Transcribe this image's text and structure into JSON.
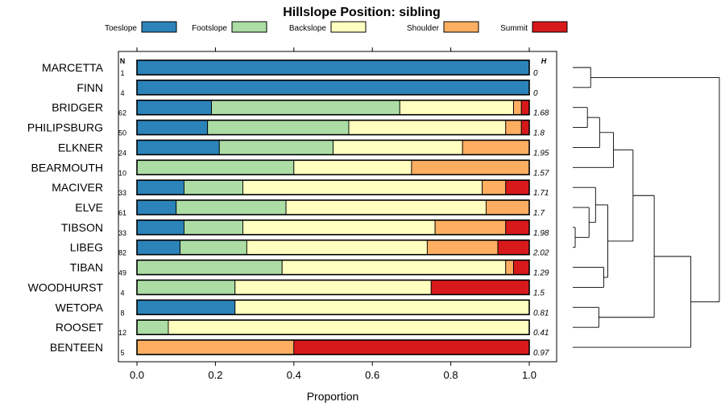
{
  "chart_data": {
    "type": "bar",
    "orientation": "horizontal",
    "stacked": true,
    "title": "Hillslope Position: sibling",
    "xlabel": "Proportion",
    "ylabel": "",
    "xlim": [
      0,
      1
    ],
    "x_ticks": [
      "0.0",
      "0.2",
      "0.4",
      "0.6",
      "0.8",
      "1.0"
    ],
    "n_header": "N",
    "h_header": "H",
    "legend": {
      "placement": "top",
      "entries": [
        {
          "name": "Toeslope",
          "color": "#2b83ba"
        },
        {
          "name": "Footslope",
          "color": "#abdda4"
        },
        {
          "name": "Backslope",
          "color": "#ffffbf"
        },
        {
          "name": "Shoulder",
          "color": "#fdae61"
        },
        {
          "name": "Summit",
          "color": "#d7191c"
        }
      ]
    },
    "categories": [
      "MARCETTA",
      "FINN",
      "BRIDGER",
      "PHILIPSBURG",
      "ELKNER",
      "BEARMOUTH",
      "MACIVER",
      "ELVE",
      "TIBSON",
      "LIBEG",
      "TIBAN",
      "WOODHURST",
      "WETOPA",
      "ROOSET",
      "BENTEEN"
    ],
    "n": [
      "1",
      "4",
      "62",
      "50",
      "24",
      "10",
      "33",
      "61",
      "33",
      "82",
      "49",
      "4",
      "8",
      "12",
      "5"
    ],
    "h": [
      "0",
      "0",
      "1.68",
      "1.8",
      "1.95",
      "1.57",
      "1.71",
      "1.7",
      "1.98",
      "2.02",
      "1.29",
      "1.5",
      "0.81",
      "0.41",
      "0.97"
    ],
    "series": [
      {
        "name": "Toeslope",
        "values": [
          1.0,
          1.0,
          0.19,
          0.18,
          0.21,
          0.0,
          0.12,
          0.1,
          0.12,
          0.11,
          0.0,
          0.0,
          0.25,
          0.0,
          0.0
        ]
      },
      {
        "name": "Footslope",
        "values": [
          0.0,
          0.0,
          0.48,
          0.36,
          0.29,
          0.4,
          0.15,
          0.28,
          0.15,
          0.17,
          0.37,
          0.25,
          0.0,
          0.08,
          0.0
        ]
      },
      {
        "name": "Backslope",
        "values": [
          0.0,
          0.0,
          0.29,
          0.4,
          0.33,
          0.3,
          0.61,
          0.51,
          0.49,
          0.46,
          0.57,
          0.5,
          0.75,
          0.92,
          0.0
        ]
      },
      {
        "name": "Shoulder",
        "values": [
          0.0,
          0.0,
          0.02,
          0.04,
          0.17,
          0.3,
          0.06,
          0.11,
          0.18,
          0.18,
          0.02,
          0.0,
          0.0,
          0.0,
          0.4
        ]
      },
      {
        "name": "Summit",
        "values": [
          0.0,
          0.0,
          0.02,
          0.02,
          0.0,
          0.0,
          0.06,
          0.0,
          0.06,
          0.08,
          0.04,
          0.25,
          0.0,
          0.0,
          0.6
        ]
      }
    ],
    "dendrogram": {
      "type": "dendrogram",
      "leaves": [
        "MARCETTA",
        "FINN",
        "BRIDGER",
        "PHILIPSBURG",
        "ELKNER",
        "BEARMOUTH",
        "MACIVER",
        "ELVE",
        "TIBSON",
        "LIBEG",
        "TIBAN",
        "WOODHURST",
        "WETOPA",
        "ROOSET",
        "BENTEEN"
      ],
      "merges": [
        {
          "a": "L9",
          "b": "L10",
          "height": 0.03
        },
        {
          "a": "L3",
          "b": "L4",
          "height": 0.18
        },
        {
          "a": "L8",
          "b": "C1",
          "height": 0.2
        },
        {
          "a": "L1",
          "b": "L2",
          "height": 0.22
        },
        {
          "a": "L7",
          "b": "C3",
          "height": 0.28
        },
        {
          "a": "L13",
          "b": "L14",
          "height": 0.32
        },
        {
          "a": "C2",
          "b": "L5",
          "height": 0.33
        },
        {
          "a": "L11",
          "b": "L12",
          "height": 0.38
        },
        {
          "a": "C5",
          "b": "C8",
          "height": 0.43
        },
        {
          "a": "C7",
          "b": "L6",
          "height": 0.5
        },
        {
          "a": "C10",
          "b": "C9",
          "height": 0.74
        },
        {
          "a": "C11",
          "b": "C6",
          "height": 1.0
        },
        {
          "a": "C12",
          "b": "L15",
          "height": 1.45
        },
        {
          "a": "C4",
          "b": "C13",
          "height": 1.8
        }
      ]
    }
  }
}
